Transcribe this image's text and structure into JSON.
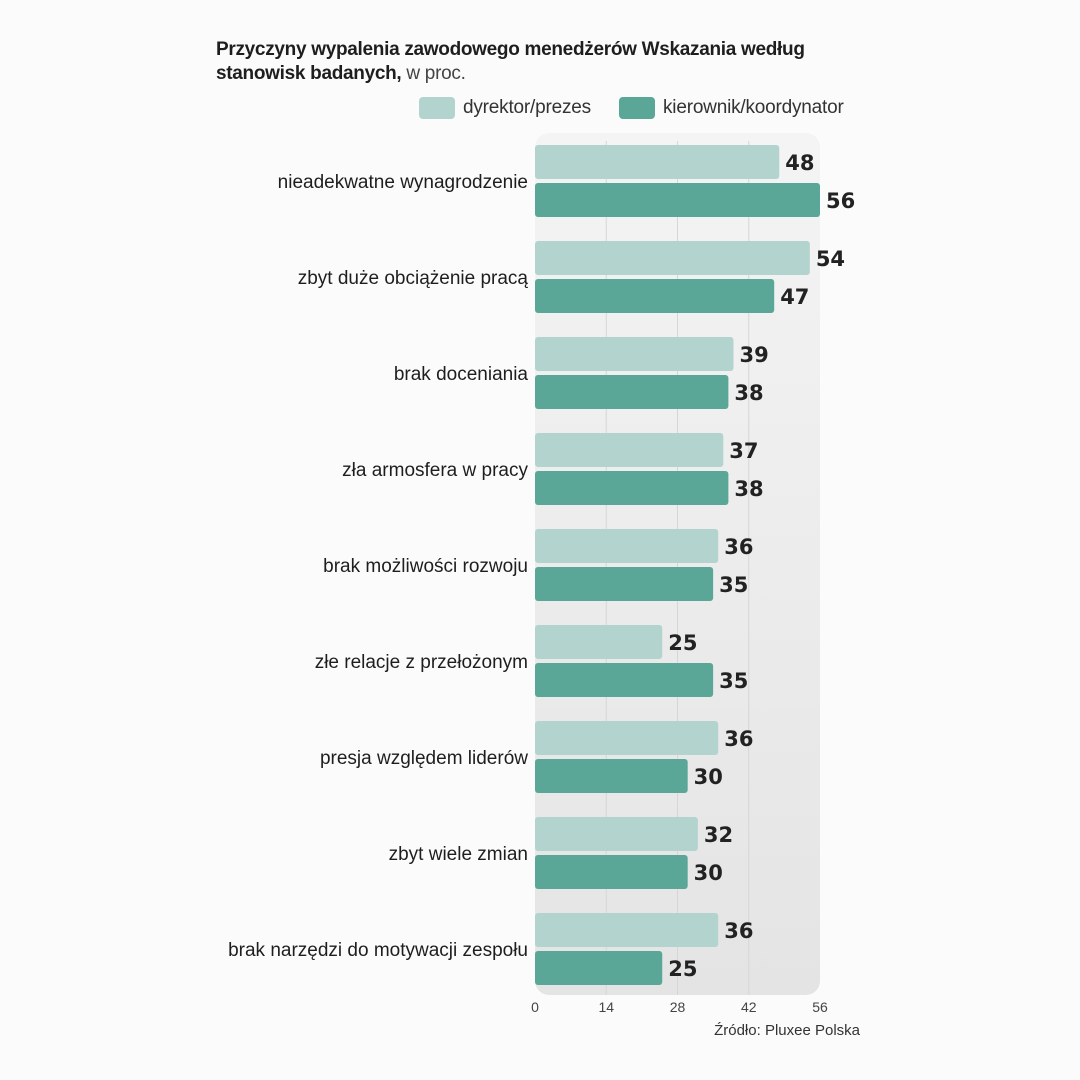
{
  "title": {
    "bold": "Przyczyny wypalenia zawodowego menedżerów Wskazania według stanowisk badanych,",
    "light": "w proc."
  },
  "source": "Źródło: Pluxee Polska",
  "colors": {
    "light": "#b3d4ce",
    "dark": "#5aa697",
    "panel_top": "#f4f4f4",
    "panel_bottom": "#e4e4e4",
    "grid": "#d6d6d6"
  },
  "chart_data": {
    "type": "bar",
    "orientation": "horizontal",
    "title": "Przyczyny wypalenia zawodowego menedżerów Wskazania według stanowisk badanych, w proc.",
    "categories": [
      "nieadekwatne wynagrodzenie",
      "zbyt duże obciążenie  pracą",
      "brak doceniania",
      "zła armosfera w pracy",
      "brak możliwości rozwoju",
      "złe relacje z przełożonym",
      "presja względem liderów",
      "zbyt wiele zmian",
      "brak narzędzi do motywacji zespołu"
    ],
    "series": [
      {
        "name": "dyrektor/prezes",
        "values": [
          48,
          54,
          39,
          37,
          36,
          25,
          36,
          32,
          36
        ]
      },
      {
        "name": "kierownik/koordynator",
        "values": [
          56,
          47,
          38,
          38,
          35,
          35,
          30,
          30,
          25
        ]
      }
    ],
    "xlim": [
      0,
      56
    ],
    "xticks": [
      "0",
      "14",
      "28",
      "42",
      "56"
    ],
    "legend": "top-right",
    "grid": true
  }
}
